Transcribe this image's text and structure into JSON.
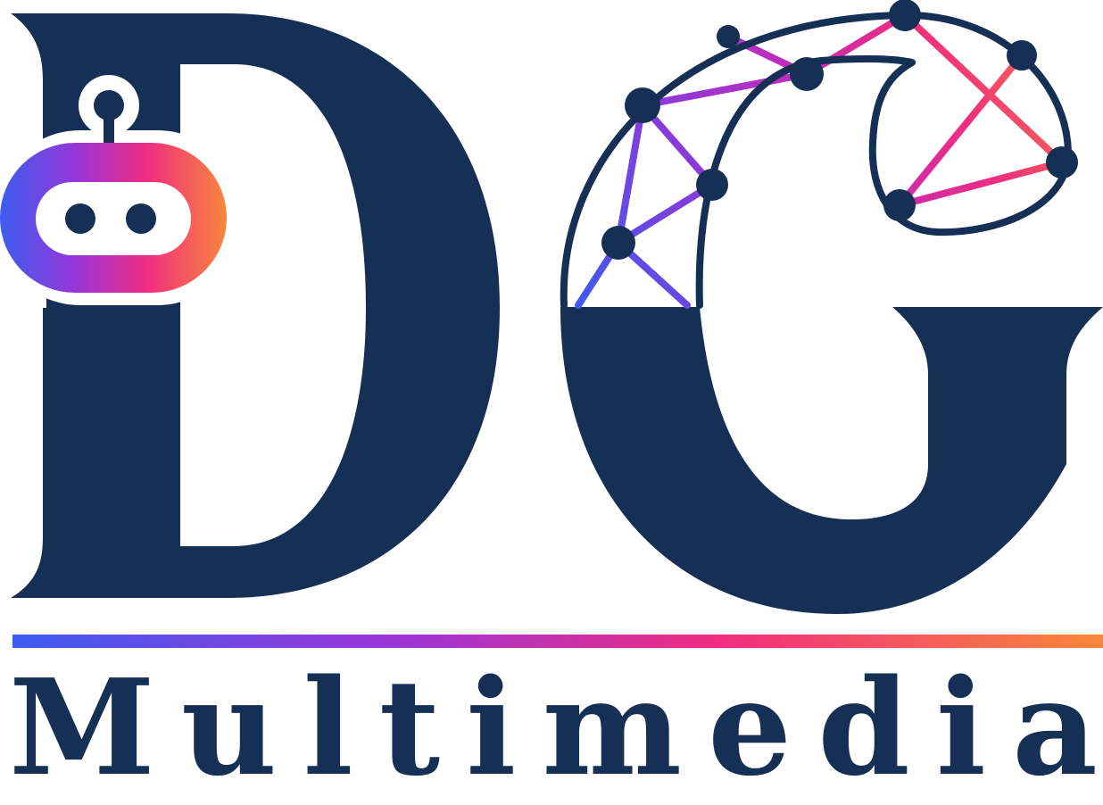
{
  "logo": {
    "monogram": "DG",
    "wordmark": "Multimedia",
    "wordmark_letters": [
      "M",
      "u",
      "l",
      "t",
      "i",
      "m",
      "e",
      "d",
      "i",
      "a"
    ],
    "colors": {
      "navy": "#162f54",
      "gradient": [
        "#3d5cf0",
        "#8a3ad9",
        "#b32dc4",
        "#f02d7f",
        "#f9873a"
      ]
    },
    "icons": [
      "robot-head-icon",
      "network-nodes-icon"
    ]
  }
}
